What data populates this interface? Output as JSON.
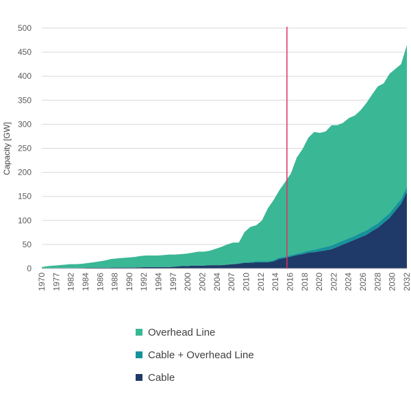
{
  "chart_data": {
    "type": "area",
    "stacked": true,
    "title": "",
    "xlabel": "",
    "ylabel": "Capacity [GW]",
    "ylim": [
      0,
      500
    ],
    "yticks": [
      0,
      50,
      100,
      150,
      200,
      250,
      300,
      350,
      400,
      450,
      500
    ],
    "x_tick_labels": [
      "1970",
      "1977",
      "1982",
      "1984",
      "1986",
      "1988",
      "1990",
      "1992",
      "1994",
      "1997",
      "2000",
      "2002",
      "2004",
      "2007",
      "2010",
      "2012",
      "2014",
      "2016",
      "2018",
      "2020",
      "2022",
      "2024",
      "2026",
      "2028",
      "2030",
      "2032"
    ],
    "x_index": [
      0,
      1,
      2,
      3,
      4,
      5,
      6,
      7,
      8,
      9,
      10,
      11,
      12,
      13,
      14,
      15,
      16,
      17,
      18,
      19,
      20,
      21,
      22,
      23,
      24,
      25,
      26,
      27,
      28,
      29,
      30,
      31,
      32,
      33,
      34,
      35,
      36,
      37,
      38,
      39,
      40,
      41,
      42,
      43,
      44,
      45,
      46,
      47,
      48,
      49,
      50,
      51,
      52,
      53,
      54,
      55,
      56,
      57,
      58,
      59,
      60,
      61,
      62,
      63
    ],
    "vertical_marker": {
      "x_index": 42.3,
      "label": "",
      "color": "#e03060"
    },
    "grid": true,
    "legend_position": "bottom",
    "series": [
      {
        "name": "Cable",
        "color": "#1f3a68",
        "values": [
          0.5,
          0.6,
          0.8,
          1,
          1,
          1,
          1,
          1.2,
          1.5,
          1.5,
          1.5,
          1.5,
          2,
          2,
          2,
          2,
          2,
          2.5,
          3,
          3,
          3,
          3,
          3,
          4,
          5,
          5,
          6,
          6,
          6,
          7,
          7,
          7,
          8,
          9,
          10,
          12,
          12,
          13,
          13,
          13,
          15,
          20,
          22,
          25,
          28,
          30,
          33,
          34,
          36,
          38,
          40,
          45,
          50,
          55,
          60,
          65,
          70,
          78,
          85,
          95,
          105,
          120,
          135,
          160
        ]
      },
      {
        "name": "Cable + Overhead Line",
        "color": "#14939b",
        "values": [
          0,
          0,
          0,
          0,
          0,
          0,
          0,
          0,
          0,
          0,
          0,
          0,
          0,
          0,
          0,
          0,
          0,
          0,
          0,
          0,
          0,
          0,
          0,
          0,
          0,
          0,
          0,
          0,
          0,
          0,
          0,
          0,
          0,
          0,
          1,
          1,
          1.5,
          2,
          2,
          2,
          2.5,
          3,
          3,
          3,
          3,
          3.5,
          4,
          5,
          6,
          7,
          8,
          8,
          8,
          8,
          8,
          9,
          9,
          9,
          9,
          10,
          10,
          10,
          10,
          10
        ]
      },
      {
        "name": "Overhead Line",
        "color": "#3ab795",
        "values": [
          2.5,
          4.4,
          5.2,
          6,
          7,
          8,
          8,
          8.8,
          10,
          11.5,
          13.5,
          15.5,
          18,
          19,
          20,
          21,
          22,
          23.5,
          24,
          24,
          24,
          25,
          26,
          25,
          25,
          26,
          27,
          29,
          29,
          30,
          34,
          38,
          42,
          45,
          43,
          63,
          73,
          75,
          85,
          110,
          125,
          140,
          155,
          170,
          200,
          215,
          235,
          245,
          240,
          240,
          250,
          245,
          245,
          250,
          250,
          255,
          265,
          275,
          285,
          280,
          290,
          285,
          280,
          295
        ]
      }
    ]
  },
  "legend": [
    {
      "label": "Overhead Line",
      "color": "#3ab795"
    },
    {
      "label": "Cable + Overhead Line",
      "color": "#14939b"
    },
    {
      "label": "Cable",
      "color": "#1f3a68"
    }
  ]
}
